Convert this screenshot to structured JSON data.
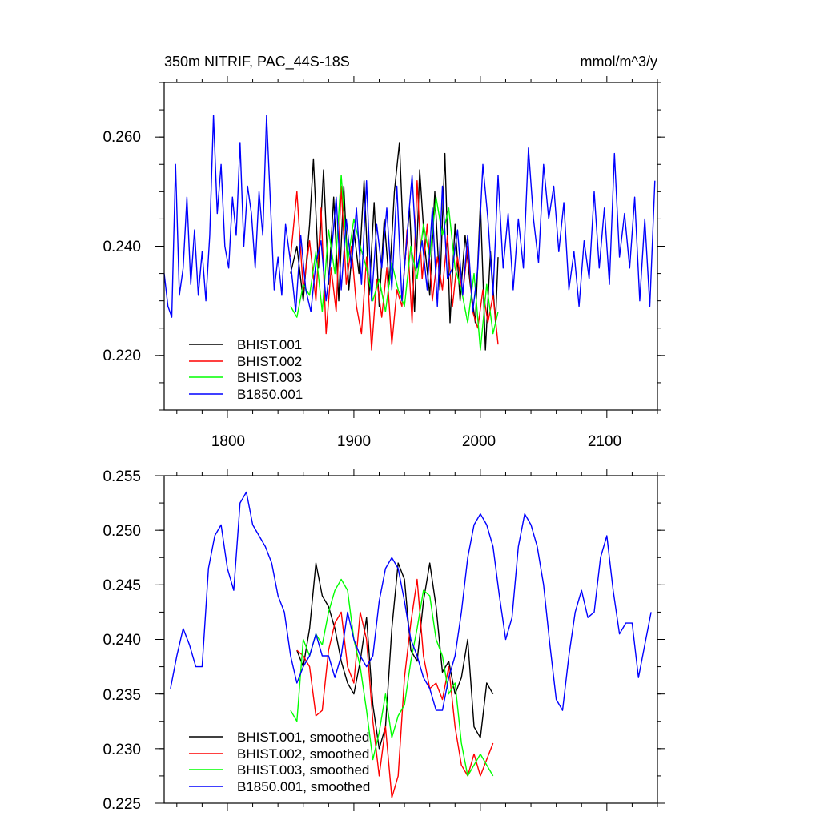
{
  "colors": {
    "BHIST.001": "#000000",
    "BHIST.002": "#ff0000",
    "BHIST.003": "#00ff00",
    "B1850.001": "#0000ff"
  },
  "chart_data": [
    {
      "type": "line",
      "title": "350m NITRIF, PAC_44S-18S",
      "units": "mmol/m^3/y",
      "xlim": [
        1750,
        2140
      ],
      "ylim": [
        0.21,
        0.27
      ],
      "xticks": [
        1800,
        1900,
        2000,
        2100
      ],
      "xtick_labels": [
        "1800",
        "1900",
        "2000",
        "2100"
      ],
      "yticks": [
        0.22,
        0.24,
        0.26
      ],
      "ytick_labels": [
        "0.220",
        "0.240",
        "0.260"
      ],
      "legend": "bottom-left",
      "series": [
        {
          "name": "BHIST.001",
          "color": "#000000",
          "x": [
            1850,
            1855,
            1860,
            1865,
            1868,
            1872,
            1876,
            1880,
            1884,
            1888,
            1892,
            1896,
            1900,
            1904,
            1908,
            1912,
            1916,
            1920,
            1924,
            1928,
            1932,
            1936,
            1940,
            1944,
            1948,
            1952,
            1956,
            1960,
            1964,
            1968,
            1972,
            1976,
            1980,
            1984,
            1988,
            1992,
            1996,
            2000,
            2004,
            2008,
            2012,
            2014
          ],
          "y": [
            0.235,
            0.24,
            0.23,
            0.244,
            0.256,
            0.236,
            0.254,
            0.233,
            0.249,
            0.23,
            0.251,
            0.232,
            0.243,
            0.235,
            0.252,
            0.231,
            0.248,
            0.229,
            0.245,
            0.233,
            0.25,
            0.259,
            0.236,
            0.247,
            0.228,
            0.254,
            0.24,
            0.231,
            0.25,
            0.232,
            0.257,
            0.226,
            0.244,
            0.23,
            0.242,
            0.233,
            0.226,
            0.248,
            0.221,
            0.239,
            0.226,
            0.238
          ]
        },
        {
          "name": "BHIST.002",
          "color": "#ff0000",
          "x": [
            1850,
            1855,
            1860,
            1865,
            1870,
            1874,
            1878,
            1882,
            1886,
            1890,
            1894,
            1898,
            1902,
            1906,
            1910,
            1914,
            1918,
            1922,
            1926,
            1930,
            1934,
            1938,
            1942,
            1946,
            1950,
            1954,
            1958,
            1962,
            1966,
            1970,
            1974,
            1978,
            1982,
            1986,
            1990,
            1994,
            1998,
            2002,
            2006,
            2010,
            2014
          ],
          "y": [
            0.238,
            0.25,
            0.232,
            0.241,
            0.23,
            0.247,
            0.224,
            0.236,
            0.228,
            0.251,
            0.233,
            0.24,
            0.229,
            0.224,
            0.238,
            0.221,
            0.234,
            0.227,
            0.236,
            0.222,
            0.232,
            0.229,
            0.243,
            0.226,
            0.252,
            0.234,
            0.244,
            0.23,
            0.238,
            0.232,
            0.242,
            0.229,
            0.238,
            0.231,
            0.24,
            0.228,
            0.225,
            0.232,
            0.226,
            0.231,
            0.222
          ]
        },
        {
          "name": "BHIST.003",
          "color": "#00ff00",
          "x": [
            1850,
            1855,
            1860,
            1865,
            1870,
            1875,
            1880,
            1885,
            1890,
            1895,
            1900,
            1905,
            1910,
            1915,
            1920,
            1925,
            1930,
            1935,
            1940,
            1945,
            1950,
            1955,
            1960,
            1965,
            1970,
            1975,
            1980,
            1985,
            1990,
            1995,
            2000,
            2005,
            2010,
            2014
          ],
          "y": [
            0.229,
            0.227,
            0.233,
            0.231,
            0.239,
            0.228,
            0.243,
            0.235,
            0.253,
            0.237,
            0.245,
            0.24,
            0.236,
            0.23,
            0.234,
            0.228,
            0.237,
            0.232,
            0.229,
            0.24,
            0.234,
            0.244,
            0.238,
            0.249,
            0.242,
            0.247,
            0.236,
            0.232,
            0.226,
            0.235,
            0.221,
            0.233,
            0.224,
            0.228
          ]
        },
        {
          "name": "B1850.001",
          "color": "#0000ff",
          "x": [
            1750,
            1753,
            1756,
            1759,
            1762,
            1765,
            1768,
            1771,
            1774,
            1777,
            1780,
            1783,
            1786,
            1789,
            1792,
            1795,
            1798,
            1801,
            1804,
            1807,
            1810,
            1813,
            1816,
            1819,
            1822,
            1825,
            1828,
            1831,
            1834,
            1837,
            1840,
            1843,
            1846,
            1850,
            1854,
            1858,
            1862,
            1866,
            1870,
            1874,
            1878,
            1882,
            1886,
            1890,
            1894,
            1898,
            1902,
            1906,
            1910,
            1914,
            1918,
            1922,
            1926,
            1930,
            1934,
            1938,
            1942,
            1946,
            1950,
            1954,
            1958,
            1962,
            1966,
            1970,
            1974,
            1978,
            1982,
            1986,
            1990,
            1994,
            1998,
            2002,
            2006,
            2010,
            2014,
            2018,
            2022,
            2026,
            2030,
            2034,
            2038,
            2042,
            2046,
            2050,
            2054,
            2058,
            2062,
            2066,
            2070,
            2074,
            2078,
            2082,
            2086,
            2090,
            2094,
            2098,
            2102,
            2106,
            2110,
            2114,
            2118,
            2122,
            2126,
            2130,
            2134,
            2138
          ],
          "y": [
            0.235,
            0.229,
            0.227,
            0.255,
            0.231,
            0.236,
            0.249,
            0.233,
            0.243,
            0.231,
            0.239,
            0.23,
            0.242,
            0.264,
            0.246,
            0.255,
            0.24,
            0.236,
            0.249,
            0.242,
            0.259,
            0.24,
            0.251,
            0.246,
            0.236,
            0.25,
            0.242,
            0.264,
            0.248,
            0.232,
            0.238,
            0.231,
            0.244,
            0.237,
            0.228,
            0.242,
            0.232,
            0.228,
            0.237,
            0.241,
            0.23,
            0.238,
            0.249,
            0.232,
            0.245,
            0.236,
            0.247,
            0.233,
            0.252,
            0.23,
            0.244,
            0.236,
            0.247,
            0.232,
            0.251,
            0.23,
            0.242,
            0.253,
            0.236,
            0.241,
            0.232,
            0.247,
            0.229,
            0.251,
            0.234,
            0.236,
            0.243,
            0.231,
            0.242,
            0.228,
            0.236,
            0.255,
            0.245,
            0.231,
            0.253,
            0.236,
            0.246,
            0.232,
            0.245,
            0.236,
            0.258,
            0.245,
            0.237,
            0.255,
            0.245,
            0.251,
            0.239,
            0.248,
            0.232,
            0.239,
            0.229,
            0.241,
            0.234,
            0.25,
            0.236,
            0.247,
            0.233,
            0.257,
            0.238,
            0.246,
            0.236,
            0.249,
            0.23,
            0.245,
            0.229,
            0.252
          ]
        }
      ]
    },
    {
      "type": "line",
      "xlim": [
        1750,
        2140
      ],
      "ylim": [
        0.225,
        0.255
      ],
      "xticks": [
        1800,
        1900,
        2000,
        2100
      ],
      "yticks": [
        0.225,
        0.23,
        0.235,
        0.24,
        0.245,
        0.25,
        0.255
      ],
      "ytick_labels": [
        "0.225",
        "0.230",
        "0.235",
        "0.240",
        "0.245",
        "0.250",
        "0.255"
      ],
      "legend": "bottom-left",
      "series": [
        {
          "name": "BHIST.001, smoothed",
          "color": "#000000",
          "x": [
            1855,
            1860,
            1865,
            1870,
            1875,
            1880,
            1885,
            1890,
            1895,
            1900,
            1905,
            1910,
            1915,
            1920,
            1925,
            1930,
            1935,
            1940,
            1945,
            1950,
            1955,
            1960,
            1965,
            1970,
            1975,
            1980,
            1985,
            1990,
            1995,
            2000,
            2005,
            2010
          ],
          "y": [
            0.239,
            0.2375,
            0.241,
            0.247,
            0.244,
            0.243,
            0.241,
            0.238,
            0.236,
            0.235,
            0.238,
            0.242,
            0.234,
            0.23,
            0.232,
            0.241,
            0.247,
            0.2455,
            0.239,
            0.238,
            0.2435,
            0.247,
            0.243,
            0.237,
            0.238,
            0.235,
            0.2365,
            0.24,
            0.232,
            0.231,
            0.236,
            0.235
          ]
        },
        {
          "name": "BHIST.002, smoothed",
          "color": "#ff0000",
          "x": [
            1855,
            1860,
            1865,
            1870,
            1875,
            1880,
            1885,
            1890,
            1895,
            1900,
            1905,
            1910,
            1915,
            1920,
            1925,
            1930,
            1935,
            1940,
            1945,
            1950,
            1955,
            1960,
            1965,
            1970,
            1975,
            1980,
            1985,
            1990,
            1995,
            2000,
            2005,
            2010
          ],
          "y": [
            0.239,
            0.2385,
            0.2375,
            0.233,
            0.2335,
            0.239,
            0.2415,
            0.2425,
            0.2375,
            0.236,
            0.2425,
            0.24,
            0.2325,
            0.2275,
            0.232,
            0.2255,
            0.2275,
            0.2365,
            0.2415,
            0.2455,
            0.2385,
            0.2355,
            0.236,
            0.2345,
            0.2375,
            0.232,
            0.2285,
            0.2275,
            0.2295,
            0.2275,
            0.229,
            0.2305
          ]
        },
        {
          "name": "BHIST.003, smoothed",
          "color": "#00ff00",
          "x": [
            1850,
            1855,
            1860,
            1865,
            1870,
            1875,
            1880,
            1885,
            1890,
            1895,
            1900,
            1905,
            1910,
            1915,
            1920,
            1925,
            1930,
            1935,
            1940,
            1945,
            1950,
            1955,
            1960,
            1965,
            1970,
            1975,
            1980,
            1985,
            1990,
            1995,
            2000,
            2005,
            2010
          ],
          "y": [
            0.2335,
            0.2325,
            0.24,
            0.2385,
            0.2405,
            0.2395,
            0.2425,
            0.2445,
            0.2455,
            0.2445,
            0.24,
            0.2375,
            0.2335,
            0.229,
            0.2315,
            0.235,
            0.231,
            0.233,
            0.234,
            0.238,
            0.241,
            0.2445,
            0.244,
            0.24,
            0.2385,
            0.235,
            0.236,
            0.2305,
            0.2275,
            0.2285,
            0.2295,
            0.2285,
            0.2275
          ]
        },
        {
          "name": "B1850.001, smoothed",
          "color": "#0000ff",
          "x": [
            1755,
            1760,
            1765,
            1770,
            1775,
            1780,
            1785,
            1790,
            1795,
            1800,
            1805,
            1810,
            1815,
            1820,
            1825,
            1830,
            1835,
            1840,
            1845,
            1850,
            1855,
            1860,
            1865,
            1870,
            1875,
            1880,
            1885,
            1890,
            1895,
            1900,
            1905,
            1910,
            1915,
            1920,
            1925,
            1930,
            1935,
            1940,
            1945,
            1950,
            1955,
            1960,
            1965,
            1970,
            1975,
            1980,
            1985,
            1990,
            1995,
            2000,
            2005,
            2010,
            2015,
            2020,
            2025,
            2030,
            2035,
            2040,
            2045,
            2050,
            2055,
            2060,
            2065,
            2070,
            2075,
            2080,
            2085,
            2090,
            2095,
            2100,
            2105,
            2110,
            2115,
            2120,
            2125,
            2130,
            2135
          ],
          "y": [
            0.2355,
            0.2385,
            0.241,
            0.2395,
            0.2375,
            0.2375,
            0.2465,
            0.2495,
            0.2505,
            0.2465,
            0.2445,
            0.2525,
            0.2535,
            0.2505,
            0.2495,
            0.2485,
            0.247,
            0.244,
            0.2425,
            0.2385,
            0.236,
            0.2375,
            0.2385,
            0.2405,
            0.2385,
            0.2385,
            0.2365,
            0.2385,
            0.2425,
            0.24,
            0.2385,
            0.2375,
            0.2385,
            0.2435,
            0.2465,
            0.2475,
            0.2465,
            0.2435,
            0.24,
            0.2385,
            0.2365,
            0.2355,
            0.2335,
            0.2335,
            0.2365,
            0.2385,
            0.2425,
            0.2475,
            0.2505,
            0.2515,
            0.2505,
            0.2485,
            0.244,
            0.24,
            0.242,
            0.2485,
            0.2515,
            0.2505,
            0.2485,
            0.245,
            0.2395,
            0.2345,
            0.2335,
            0.2385,
            0.2425,
            0.2445,
            0.242,
            0.2425,
            0.2475,
            0.2495,
            0.2445,
            0.2405,
            0.2415,
            0.2415,
            0.2365,
            0.2395,
            0.2425
          ]
        }
      ]
    }
  ]
}
